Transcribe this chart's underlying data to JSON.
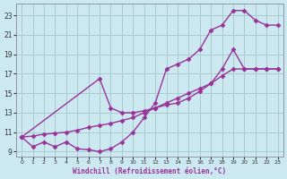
{
  "background_color": "#cce8f0",
  "grid_color": "#aacccc",
  "line_color": "#993399",
  "marker": "D",
  "markersize": 2.5,
  "linewidth": 1.0,
  "xlabel": "Windchill (Refroidissement éolien,°C)",
  "xlim": [
    -0.5,
    23.5
  ],
  "ylim": [
    8.5,
    24.2
  ],
  "xticks": [
    0,
    1,
    2,
    3,
    4,
    5,
    6,
    7,
    8,
    9,
    10,
    11,
    12,
    13,
    14,
    15,
    16,
    17,
    18,
    19,
    20,
    21,
    22,
    23
  ],
  "yticks": [
    9,
    11,
    13,
    15,
    17,
    19,
    21,
    23
  ],
  "series": [
    {
      "x": [
        0,
        1,
        2,
        3,
        4,
        5,
        6,
        7,
        8,
        9,
        10,
        11,
        12,
        13,
        14,
        15,
        16,
        17,
        18,
        19,
        20,
        21,
        22,
        23
      ],
      "y": [
        10.5,
        9.5,
        10.0,
        9.5,
        10.0,
        9.3,
        9.2,
        9.0,
        9.3,
        10.0,
        11.0,
        12.5,
        14.0,
        17.5,
        18.0,
        18.5,
        19.5,
        21.5,
        22.0,
        23.5,
        23.5,
        22.5,
        22.0,
        22.0
      ]
    },
    {
      "x": [
        0,
        1,
        2,
        3,
        4,
        5,
        6,
        7,
        8,
        9,
        10,
        11,
        12,
        13,
        14,
        15,
        16,
        17,
        18,
        19,
        20,
        21,
        22,
        23
      ],
      "y": [
        10.5,
        10.6,
        10.8,
        10.9,
        11.0,
        11.2,
        11.5,
        11.7,
        11.9,
        12.2,
        12.5,
        13.0,
        13.5,
        14.0,
        14.5,
        15.0,
        15.5,
        16.0,
        16.8,
        17.5,
        17.5,
        17.5,
        17.5,
        17.5
      ]
    },
    {
      "x": [
        0,
        7,
        8,
        9,
        10,
        11,
        12,
        13,
        14,
        15,
        16,
        17,
        18,
        19,
        20,
        21,
        22,
        23
      ],
      "y": [
        10.5,
        16.5,
        13.5,
        13.0,
        13.0,
        13.2,
        13.5,
        13.8,
        14.0,
        14.5,
        15.2,
        16.0,
        17.5,
        19.5,
        17.5,
        17.5,
        17.5,
        17.5
      ]
    }
  ]
}
